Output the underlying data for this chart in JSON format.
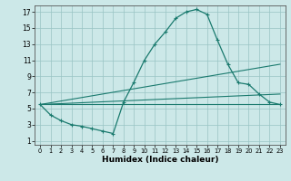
{
  "xlabel": "Humidex (Indice chaleur)",
  "bg_color": "#cce8e8",
  "grid_color": "#99c4c4",
  "line_color": "#1a7a6e",
  "xlim_min": -0.5,
  "xlim_max": 23.5,
  "ylim_min": 0.5,
  "ylim_max": 17.8,
  "xticks": [
    0,
    1,
    2,
    3,
    4,
    5,
    6,
    7,
    8,
    9,
    10,
    11,
    12,
    13,
    14,
    15,
    16,
    17,
    18,
    19,
    20,
    21,
    22,
    23
  ],
  "yticks": [
    1,
    3,
    5,
    7,
    9,
    11,
    13,
    15,
    17
  ],
  "main_x": [
    0,
    1,
    2,
    3,
    4,
    5,
    6,
    7,
    8,
    9,
    10,
    11,
    12,
    13,
    14,
    15,
    16,
    17,
    18,
    19,
    20,
    21,
    22,
    23
  ],
  "main_y": [
    5.5,
    4.2,
    3.5,
    3.0,
    2.8,
    2.5,
    2.2,
    1.9,
    5.8,
    8.3,
    11.0,
    13.0,
    14.5,
    16.2,
    17.0,
    17.3,
    16.7,
    13.5,
    10.5,
    8.2,
    8.0,
    6.8,
    5.8,
    5.5
  ],
  "line2_x": [
    0,
    23
  ],
  "line2_y": [
    5.5,
    5.5
  ],
  "line3_x": [
    0,
    23
  ],
  "line3_y": [
    5.5,
    10.5
  ],
  "line4_x": [
    0,
    23
  ],
  "line4_y": [
    5.5,
    6.8
  ]
}
